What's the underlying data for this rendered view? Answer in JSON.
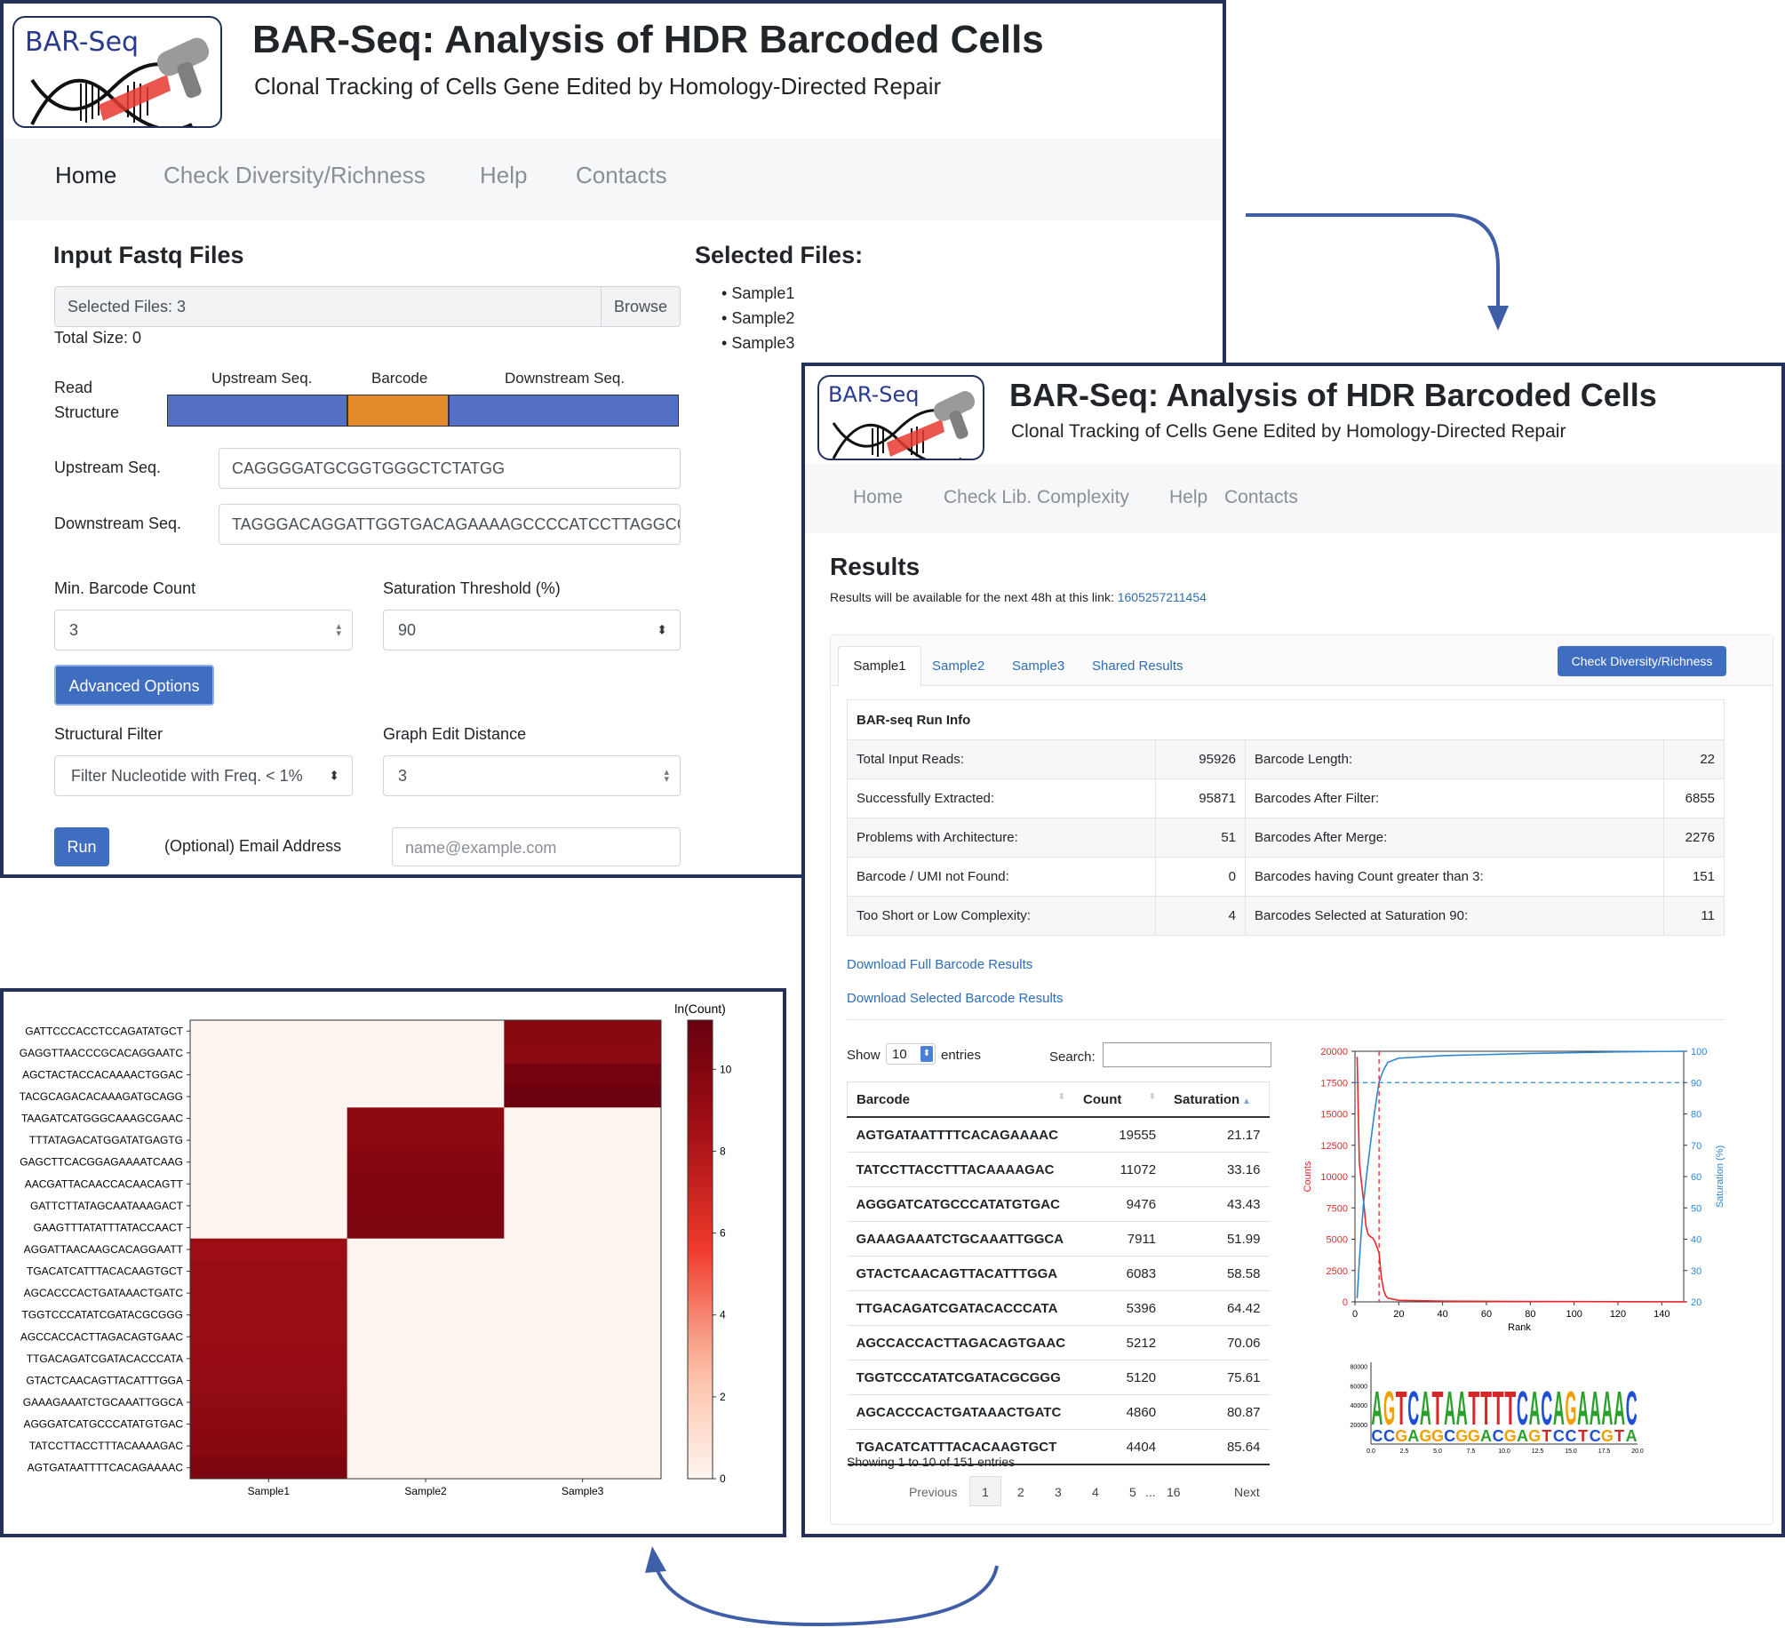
{
  "app": {
    "logo_text": "BAR-Seq",
    "title": "BAR-Seq: Analysis of HDR Barcoded Cells",
    "subtitle": "Clonal Tracking of Cells Gene Edited by Homology-Directed Repair"
  },
  "home_page": {
    "nav": [
      "Home",
      "Check Diversity/Richness",
      "Help",
      "Contacts"
    ],
    "input_title": "Input Fastq Files",
    "file_input_value": "Selected Files: 3",
    "browse_label": "Browse",
    "total_size": "Total Size: 0",
    "selected_title": "Selected Files:",
    "selected_files": [
      "Sample1",
      "Sample2",
      "Sample3"
    ],
    "read_structure_label": "Read Structure",
    "read_structure_label_1": "Read",
    "read_structure_label_2": "Structure",
    "segments": [
      "Upstream Seq.",
      "Barcode",
      "Downstream Seq."
    ],
    "segment_colors": [
      "#5470c6",
      "#e38b2c",
      "#5470c6"
    ],
    "upstream_label": "Upstream Seq.",
    "upstream_value": "CAGGGGATGCGGTGGGCTCTATGG",
    "downstream_label": "Downstream Seq.",
    "downstream_value": "TAGGGACAGGATTGGTGACAGAAAAGCCCCATCCTTAGGCCT",
    "min_count_label": "Min. Barcode Count",
    "min_count_value": "3",
    "saturation_label": "Saturation Threshold (%)",
    "saturation_value": "90",
    "advanced_button": "Advanced Options",
    "structural_filter_label": "Structural Filter",
    "structural_filter_value": "Filter Nucleotide with Freq. < 1%",
    "graph_edit_label": "Graph Edit Distance",
    "graph_edit_value": "3",
    "run_button": "Run",
    "email_label": "(Optional) Email Address",
    "email_placeholder": "name@example.com"
  },
  "results_page": {
    "nav": [
      "Home",
      "Check Lib. Complexity",
      "Help",
      "Contacts"
    ],
    "heading": "Results",
    "availability_text": "Results will be available for the next 48h at this link:",
    "link_id": "1605257211454",
    "tabs": [
      "Sample1",
      "Sample2",
      "Sample3",
      "Shared Results"
    ],
    "check_button": "Check Diversity/Richness",
    "run_info_title": "BAR-seq Run Info",
    "run_info": [
      [
        "Total Input Reads:",
        "95926",
        "Barcode Length:",
        "22"
      ],
      [
        "Successfully Extracted:",
        "95871",
        "Barcodes After Filter:",
        "6855"
      ],
      [
        "Problems with Architecture:",
        "51",
        "Barcodes After Merge:",
        "2276"
      ],
      [
        "Barcode / UMI not Found:",
        "0",
        "Barcodes having Count greater than 3:",
        "151"
      ],
      [
        "Too Short or Low Complexity:",
        "4",
        "Barcodes Selected at Saturation 90:",
        "11"
      ]
    ],
    "download_full": "Download Full Barcode Results",
    "download_selected": "Download Selected Barcode Results",
    "show_label": "Show",
    "entries_value": "10",
    "entries_label": "entries",
    "search_label": "Search:",
    "columns": [
      "Barcode",
      "Count",
      "Saturation"
    ],
    "rows": [
      [
        "AGTGATAATTTTCACAGAAAAC",
        "19555",
        "21.17"
      ],
      [
        "TATCCTTACCTTTACAAAAGAC",
        "11072",
        "33.16"
      ],
      [
        "AGGGATCATGCCCATATGTGAC",
        "9476",
        "43.43"
      ],
      [
        "GAAAGAAATCTGCAAATTGGCA",
        "7911",
        "51.99"
      ],
      [
        "GTACTCAACAGTTACATTTGGA",
        "6083",
        "58.58"
      ],
      [
        "TTGACAGATCGATACACCCATA",
        "5396",
        "64.42"
      ],
      [
        "AGCCACCACTTAGACAGTGAAC",
        "5212",
        "70.06"
      ],
      [
        "TGGTCCCATATCGATACGCGGG",
        "5120",
        "75.61"
      ],
      [
        "AGCACCCACTGATAAACTGATC",
        "4860",
        "80.87"
      ],
      [
        "TGACATCATTTACACAAGTGCT",
        "4404",
        "85.64"
      ]
    ],
    "showing_text": "Showing 1 to 10 of 151 entries",
    "pagination": [
      "Previous",
      "1",
      "2",
      "3",
      "4",
      "5",
      "...",
      "16",
      "Next"
    ]
  },
  "chart_data": [
    {
      "type": "line",
      "xlabel": "Rank",
      "ylabel": "Counts",
      "ylabel_right": "Saturation (%)",
      "xlim": [
        0,
        150
      ],
      "ylim": [
        0,
        20000
      ],
      "ylim_right": [
        20,
        100
      ],
      "xticks": [
        "0",
        "20",
        "40",
        "60",
        "80",
        "100",
        "120",
        "140"
      ],
      "yticks": [
        "0",
        "2500",
        "5000",
        "7500",
        "10000",
        "12500",
        "15000",
        "17500",
        "20000"
      ],
      "yticks_right": [
        "20",
        "30",
        "40",
        "50",
        "60",
        "70",
        "80",
        "90",
        "100"
      ],
      "threshold_saturation": 90,
      "threshold_rank": 11,
      "series": [
        {
          "axis": "left",
          "color": "#e8262b",
          "x": [
            1,
            2,
            3,
            4,
            5,
            6,
            7,
            8,
            9,
            10,
            11,
            12,
            13,
            14,
            15,
            20,
            40,
            80,
            120,
            151
          ],
          "values": [
            19555,
            11072,
            9476,
            7911,
            6083,
            5396,
            5212,
            5120,
            4860,
            4404,
            3900,
            2000,
            1000,
            500,
            300,
            120,
            60,
            30,
            15,
            5
          ]
        },
        {
          "axis": "right",
          "color": "#2e86d0",
          "x": [
            1,
            2,
            3,
            4,
            5,
            6,
            7,
            8,
            9,
            10,
            11,
            13,
            15,
            20,
            40,
            80,
            120,
            151
          ],
          "values": [
            21.17,
            33.16,
            43.43,
            51.99,
            58.58,
            64.42,
            70.06,
            75.61,
            80.87,
            85.64,
            90.2,
            94,
            96.5,
            97.8,
            98.6,
            99.3,
            99.8,
            100
          ]
        }
      ],
      "colors": {
        "counts": "#e8262b",
        "saturation": "#2e86d0"
      }
    },
    {
      "type": "heatmap",
      "colorbar_label": "ln(Count)",
      "colorbar_ticks": [
        "0",
        "2",
        "4",
        "6",
        "8",
        "10"
      ],
      "columns": [
        "Sample1",
        "Sample2",
        "Sample3"
      ],
      "rows": [
        "GATTCCCACCTCCAGATATGCT",
        "GAGGTTAACCCGCACAGGAATC",
        "AGCTACTACCACAAAACTGGAC",
        "TACGCAGACACAAAGATGCAGG",
        "TAAGATCATGGGCAAAGCGAAC",
        "TTTATAGACATGGATATGAGTG",
        "GAGCTTCACGGAGAAAATCAAG",
        "AACGATTACAACCACAACAGTT",
        "GATTCTTATAGCAATAAAGACT",
        "GAAGTTTATATTTATACCAACT",
        "AGGATTAACAAGCACAGGAATT",
        "TGACATCATTTACACAAGTGCT",
        "AGCACCCACTGATAAACTGATC",
        "TGGTCCCATATCGATACGCGGG",
        "AGCCACCACTTAGACAGTGAAC",
        "TTGACAGATCGATACACCCATA",
        "GTACTCAACAGTTACATTTGGA",
        "GAAAGAAATCTGCAAATTGGCA",
        "AGGGATCATGCCCATATGTGAC",
        "TATCCTTACCTTTACAAAAGAC",
        "AGTGATAATTTTCACAGAAAAC"
      ],
      "values": [
        [
          0,
          0,
          9.7
        ],
        [
          0,
          0,
          9.6
        ],
        [
          0,
          0,
          10.6
        ],
        [
          0,
          0,
          11.0
        ],
        [
          0,
          9.5,
          0
        ],
        [
          0,
          9.6,
          0
        ],
        [
          0,
          9.9,
          0
        ],
        [
          0,
          10.0,
          0
        ],
        [
          0,
          10.1,
          0
        ],
        [
          0,
          10.2,
          0
        ],
        [
          8.8,
          0,
          0
        ],
        [
          8.9,
          0,
          0
        ],
        [
          8.9,
          0,
          0
        ],
        [
          9.0,
          0,
          0
        ],
        [
          9.0,
          0,
          0
        ],
        [
          9.1,
          0,
          0
        ],
        [
          9.2,
          0,
          0
        ],
        [
          9.4,
          0,
          0
        ],
        [
          9.6,
          0,
          0
        ],
        [
          9.7,
          0,
          0
        ],
        [
          10.2,
          0,
          0
        ]
      ],
      "vlim": [
        0,
        11.2
      ]
    },
    {
      "type": "sequence-logo",
      "sequence": "AGTCATAATTTTCACAGAAAAC",
      "yticks": [
        "20000",
        "40000",
        "60000",
        "80000"
      ],
      "xticks": [
        "0.0",
        "2.5",
        "5.0",
        "7.5",
        "10.0",
        "12.5",
        "15.0",
        "17.5",
        "20.0"
      ],
      "base_colors": {
        "A": "#2ca02c",
        "C": "#1f4fd6",
        "G": "#f0a000",
        "T": "#d62728"
      }
    }
  ]
}
